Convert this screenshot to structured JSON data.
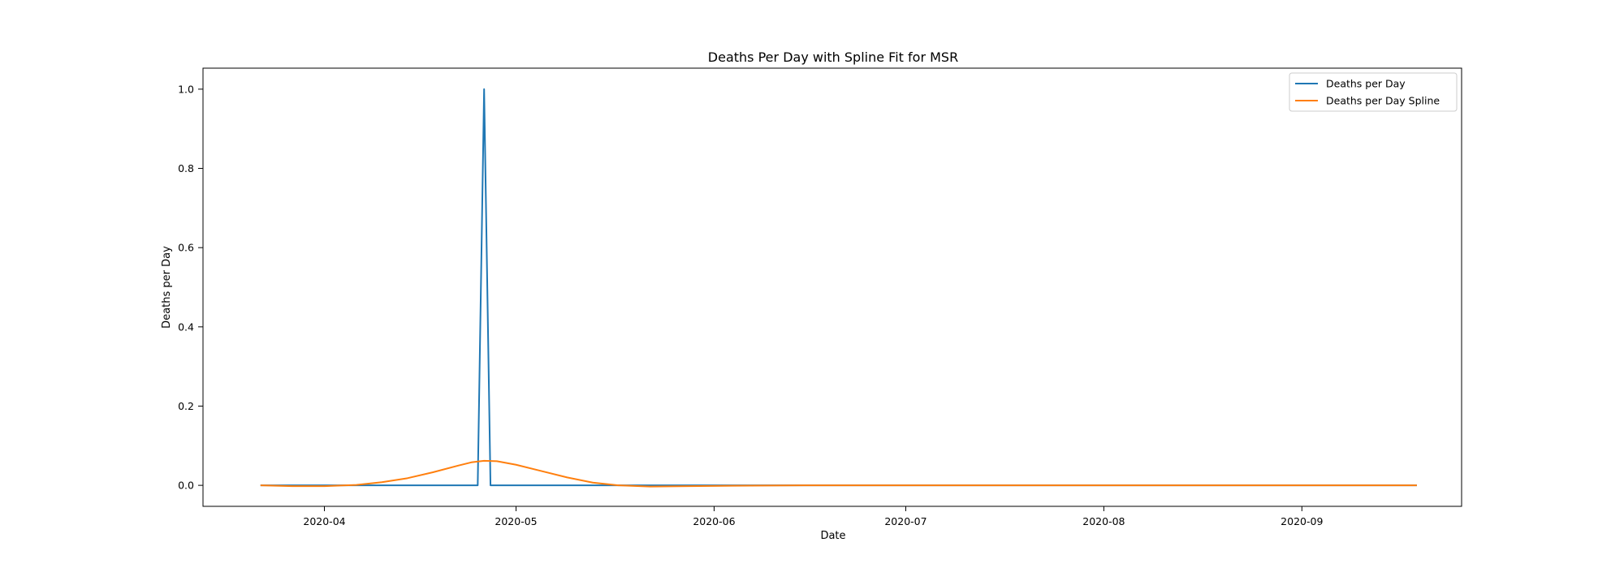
{
  "chart_data": {
    "type": "line",
    "title": "Deaths Per Day with Spline Fit for MSR",
    "xlabel": "Date",
    "ylabel": "Deaths per Day",
    "xlim": [
      "2020-03-13",
      "2020-09-26"
    ],
    "ylim": [
      -0.053,
      1.053
    ],
    "x_ticks": [
      "2020-04",
      "2020-05",
      "2020-06",
      "2020-07",
      "2020-08",
      "2020-09"
    ],
    "x_tick_dates": [
      "2020-04-01",
      "2020-05-01",
      "2020-06-01",
      "2020-07-01",
      "2020-08-01",
      "2020-09-01"
    ],
    "y_ticks": [
      "0.0",
      "0.2",
      "0.4",
      "0.6",
      "0.8",
      "1.0"
    ],
    "y_tick_values": [
      0.0,
      0.2,
      0.4,
      0.6,
      0.8,
      1.0
    ],
    "grid": false,
    "legend_position": "top-right",
    "series": [
      {
        "name": "Deaths per Day",
        "color": "#1f77b4",
        "x": [
          "2020-03-22",
          "2020-04-25",
          "2020-04-26",
          "2020-04-27",
          "2020-09-19"
        ],
        "y": [
          0,
          0,
          1,
          0,
          0
        ]
      },
      {
        "name": "Deaths per Day Spline",
        "color": "#ff7f0e",
        "x": [
          "2020-03-22",
          "2020-03-27",
          "2020-04-01",
          "2020-04-06",
          "2020-04-10",
          "2020-04-14",
          "2020-04-18",
          "2020-04-22",
          "2020-04-24",
          "2020-04-26",
          "2020-04-28",
          "2020-05-01",
          "2020-05-05",
          "2020-05-09",
          "2020-05-13",
          "2020-05-17",
          "2020-05-22",
          "2020-05-28",
          "2020-06-04",
          "2020-06-15",
          "2020-07-15",
          "2020-08-15",
          "2020-09-19"
        ],
        "y": [
          0.0,
          -0.002,
          -0.002,
          0.001,
          0.008,
          0.018,
          0.033,
          0.05,
          0.058,
          0.062,
          0.061,
          0.052,
          0.036,
          0.02,
          0.007,
          0.0,
          -0.003,
          -0.002,
          -0.001,
          0.0,
          0.0,
          0.0,
          0.0
        ]
      }
    ]
  }
}
